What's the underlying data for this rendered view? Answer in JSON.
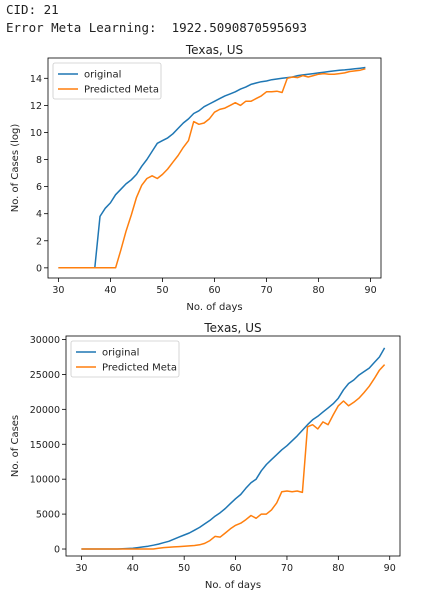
{
  "output": {
    "cid_label": "CID: 21",
    "error_label": "Error Meta Learning:  1922.5090870595693"
  },
  "colors": {
    "original": "#1f77b4",
    "predicted": "#ff7f0e"
  },
  "chart_data": [
    {
      "type": "line",
      "title": "Texas, US",
      "xlabel": "No. of days",
      "ylabel": "No. of Cases (log)",
      "xlim": [
        28.0,
        92.0
      ],
      "ylim": [
        -0.75,
        15.5
      ],
      "xticks": [
        30,
        40,
        50,
        60,
        70,
        80,
        90
      ],
      "yticks": [
        0,
        2,
        4,
        6,
        8,
        10,
        12,
        14
      ],
      "legend": "upper-left",
      "series": [
        {
          "name": "original",
          "x": [
            30,
            31,
            32,
            33,
            34,
            35,
            36,
            37,
            38,
            39,
            40,
            41,
            42,
            43,
            44,
            45,
            46,
            47,
            48,
            49,
            50,
            51,
            52,
            53,
            54,
            55,
            56,
            57,
            58,
            59,
            60,
            61,
            62,
            63,
            64,
            65,
            66,
            67,
            68,
            69,
            70,
            71,
            72,
            73,
            74,
            75,
            76,
            77,
            78,
            79,
            80,
            81,
            82,
            83,
            84,
            85,
            86,
            87,
            88,
            89
          ],
          "y": [
            0,
            0,
            0,
            0,
            0,
            0,
            0,
            0,
            3.8,
            4.4,
            4.8,
            5.4,
            5.8,
            6.2,
            6.5,
            6.9,
            7.5,
            8.0,
            8.6,
            9.2,
            9.4,
            9.6,
            9.9,
            10.3,
            10.7,
            11.0,
            11.4,
            11.6,
            11.9,
            12.1,
            12.3,
            12.5,
            12.7,
            12.85,
            13.0,
            13.2,
            13.35,
            13.55,
            13.65,
            13.75,
            13.8,
            13.9,
            13.95,
            14.0,
            14.05,
            14.1,
            14.2,
            14.25,
            14.3,
            14.35,
            14.4,
            14.45,
            14.5,
            14.55,
            14.6,
            14.62,
            14.66,
            14.7,
            14.75,
            14.8
          ]
        },
        {
          "name": "Predicted Meta",
          "x": [
            30,
            31,
            32,
            33,
            34,
            35,
            36,
            37,
            38,
            39,
            40,
            41,
            42,
            43,
            44,
            45,
            46,
            47,
            48,
            49,
            50,
            51,
            52,
            53,
            54,
            55,
            56,
            57,
            58,
            59,
            60,
            61,
            62,
            63,
            64,
            65,
            66,
            67,
            68,
            69,
            70,
            71,
            72,
            73,
            74,
            75,
            76,
            77,
            78,
            79,
            80,
            81,
            82,
            83,
            84,
            85,
            86,
            87,
            88,
            89
          ],
          "y": [
            0,
            0,
            0,
            0,
            0,
            0,
            0,
            0,
            0,
            0,
            0,
            0,
            1.3,
            2.7,
            3.9,
            5.2,
            6.1,
            6.6,
            6.8,
            6.6,
            6.9,
            7.3,
            7.8,
            8.3,
            8.9,
            9.4,
            10.8,
            10.6,
            10.7,
            11.0,
            11.5,
            11.7,
            11.8,
            12.0,
            12.2,
            12.0,
            12.3,
            12.3,
            12.5,
            12.7,
            13.0,
            13.0,
            13.05,
            12.95,
            14.0,
            14.1,
            14.05,
            14.2,
            14.1,
            14.2,
            14.3,
            14.35,
            14.3,
            14.3,
            14.35,
            14.4,
            14.5,
            14.55,
            14.6,
            14.7
          ]
        }
      ]
    },
    {
      "type": "line",
      "title": "Texas, US",
      "xlabel": "No. of days",
      "ylabel": "No. of Cases",
      "xlim": [
        27.0,
        92.0
      ],
      "ylim": [
        -1000,
        30500
      ],
      "xticks": [
        30,
        40,
        50,
        60,
        70,
        80,
        90
      ],
      "yticks": [
        0,
        5000,
        10000,
        15000,
        20000,
        25000,
        30000
      ],
      "legend": "upper-left",
      "series": [
        {
          "name": "original",
          "x": [
            30,
            31,
            32,
            33,
            34,
            35,
            36,
            37,
            38,
            39,
            40,
            41,
            42,
            43,
            44,
            45,
            46,
            47,
            48,
            49,
            50,
            51,
            52,
            53,
            54,
            55,
            56,
            57,
            58,
            59,
            60,
            61,
            62,
            63,
            64,
            65,
            66,
            67,
            68,
            69,
            70,
            71,
            72,
            73,
            74,
            75,
            76,
            77,
            78,
            79,
            80,
            81,
            82,
            83,
            84,
            85,
            86,
            87,
            88,
            89
          ],
          "y": [
            0,
            0,
            0,
            0,
            0,
            0,
            0,
            0,
            40,
            80,
            120,
            200,
            300,
            400,
            550,
            700,
            900,
            1100,
            1400,
            1700,
            2000,
            2300,
            2700,
            3100,
            3600,
            4100,
            4700,
            5200,
            5800,
            6500,
            7200,
            7800,
            8700,
            9500,
            10000,
            11200,
            12100,
            12800,
            13500,
            14200,
            14800,
            15500,
            16200,
            17000,
            17800,
            18500,
            19000,
            19600,
            20200,
            20800,
            21600,
            22800,
            23700,
            24200,
            24900,
            25400,
            25900,
            26700,
            27500,
            28800
          ]
        },
        {
          "name": "Predicted Meta",
          "x": [
            30,
            31,
            32,
            33,
            34,
            35,
            36,
            37,
            38,
            39,
            40,
            41,
            42,
            43,
            44,
            45,
            46,
            47,
            48,
            49,
            50,
            51,
            52,
            53,
            54,
            55,
            56,
            57,
            58,
            59,
            60,
            61,
            62,
            63,
            64,
            65,
            66,
            67,
            68,
            69,
            70,
            71,
            72,
            73,
            74,
            75,
            76,
            77,
            78,
            79,
            80,
            81,
            82,
            83,
            84,
            85,
            86,
            87,
            88,
            89
          ],
          "y": [
            0,
            0,
            0,
            0,
            0,
            0,
            0,
            0,
            0,
            0,
            0,
            0,
            0,
            0,
            0,
            100,
            200,
            250,
            300,
            350,
            400,
            450,
            500,
            600,
            800,
            1200,
            1800,
            1700,
            2300,
            2900,
            3400,
            3700,
            4200,
            4800,
            4400,
            5000,
            5000,
            5600,
            6600,
            8200,
            8300,
            8200,
            8300,
            8100,
            17500,
            17800,
            17200,
            18200,
            17800,
            19200,
            20500,
            21200,
            20500,
            21000,
            21600,
            22400,
            23300,
            24400,
            25600,
            26400
          ]
        }
      ]
    }
  ]
}
